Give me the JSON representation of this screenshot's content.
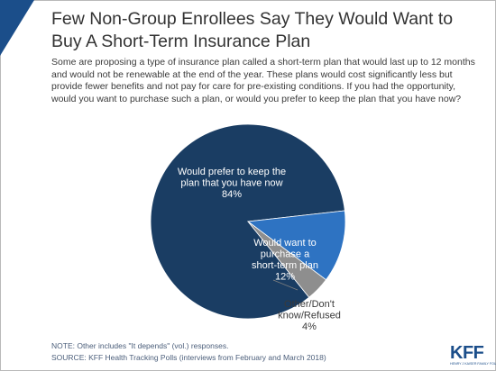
{
  "title": "Few Non-Group Enrollees Say They Would Want to Buy A Short-Term Insurance Plan",
  "question": "Some are proposing a type of insurance plan called a short-term plan that would last up to 12 months and would not be renewable at the end of the year.  These plans would cost significantly less but provide fewer benefits and not pay for care for pre-existing conditions. If you had the opportunity, would you want to purchase such a plan, or would you prefer to keep the plan that you have now?",
  "notes": {
    "note": "NOTE: Other includes \"It depends\" (vol.) responses.",
    "source": "SOURCE: KFF Health Tracking Polls (interviews from February and March 2018)"
  },
  "logo": {
    "mark": "KFF",
    "subtitle": "HENRY J KAISER FAMILY FOUNDATION"
  },
  "chart_data": {
    "type": "pie",
    "title": "",
    "slices": [
      {
        "label_lines": [
          "Would prefer to keep the",
          "plan that  you have now",
          "84%"
        ],
        "value": 84,
        "color": "#1a3d63"
      },
      {
        "label_lines": [
          "Would want to",
          "purchase a",
          "short-term plan",
          "12%"
        ],
        "value": 12,
        "color": "#2e73c2"
      },
      {
        "label_lines": [
          "Other/Don't",
          "know/Refused",
          "4%"
        ],
        "value": 4,
        "color": "#8e8e8e"
      }
    ]
  },
  "colors": {
    "accent": "#1b4e8a",
    "text": "#333333"
  }
}
